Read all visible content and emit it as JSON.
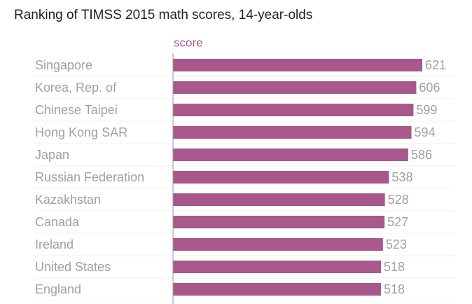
{
  "chart_data": {
    "type": "bar",
    "orientation": "horizontal",
    "title": "Ranking of TIMSS 2015 math scores, 14-year-olds",
    "categories": [
      "Singapore",
      "Korea, Rep. of",
      "Chinese Taipei",
      "Hong Kong SAR",
      "Japan",
      "Russian Federation",
      "Kazakhstan",
      "Canada",
      "Ireland",
      "United States",
      "England"
    ],
    "series": [
      {
        "name": "score",
        "color": "#a8588a",
        "values": [
          621,
          606,
          599,
          594,
          586,
          538,
          528,
          527,
          523,
          518,
          518
        ]
      }
    ]
  }
}
